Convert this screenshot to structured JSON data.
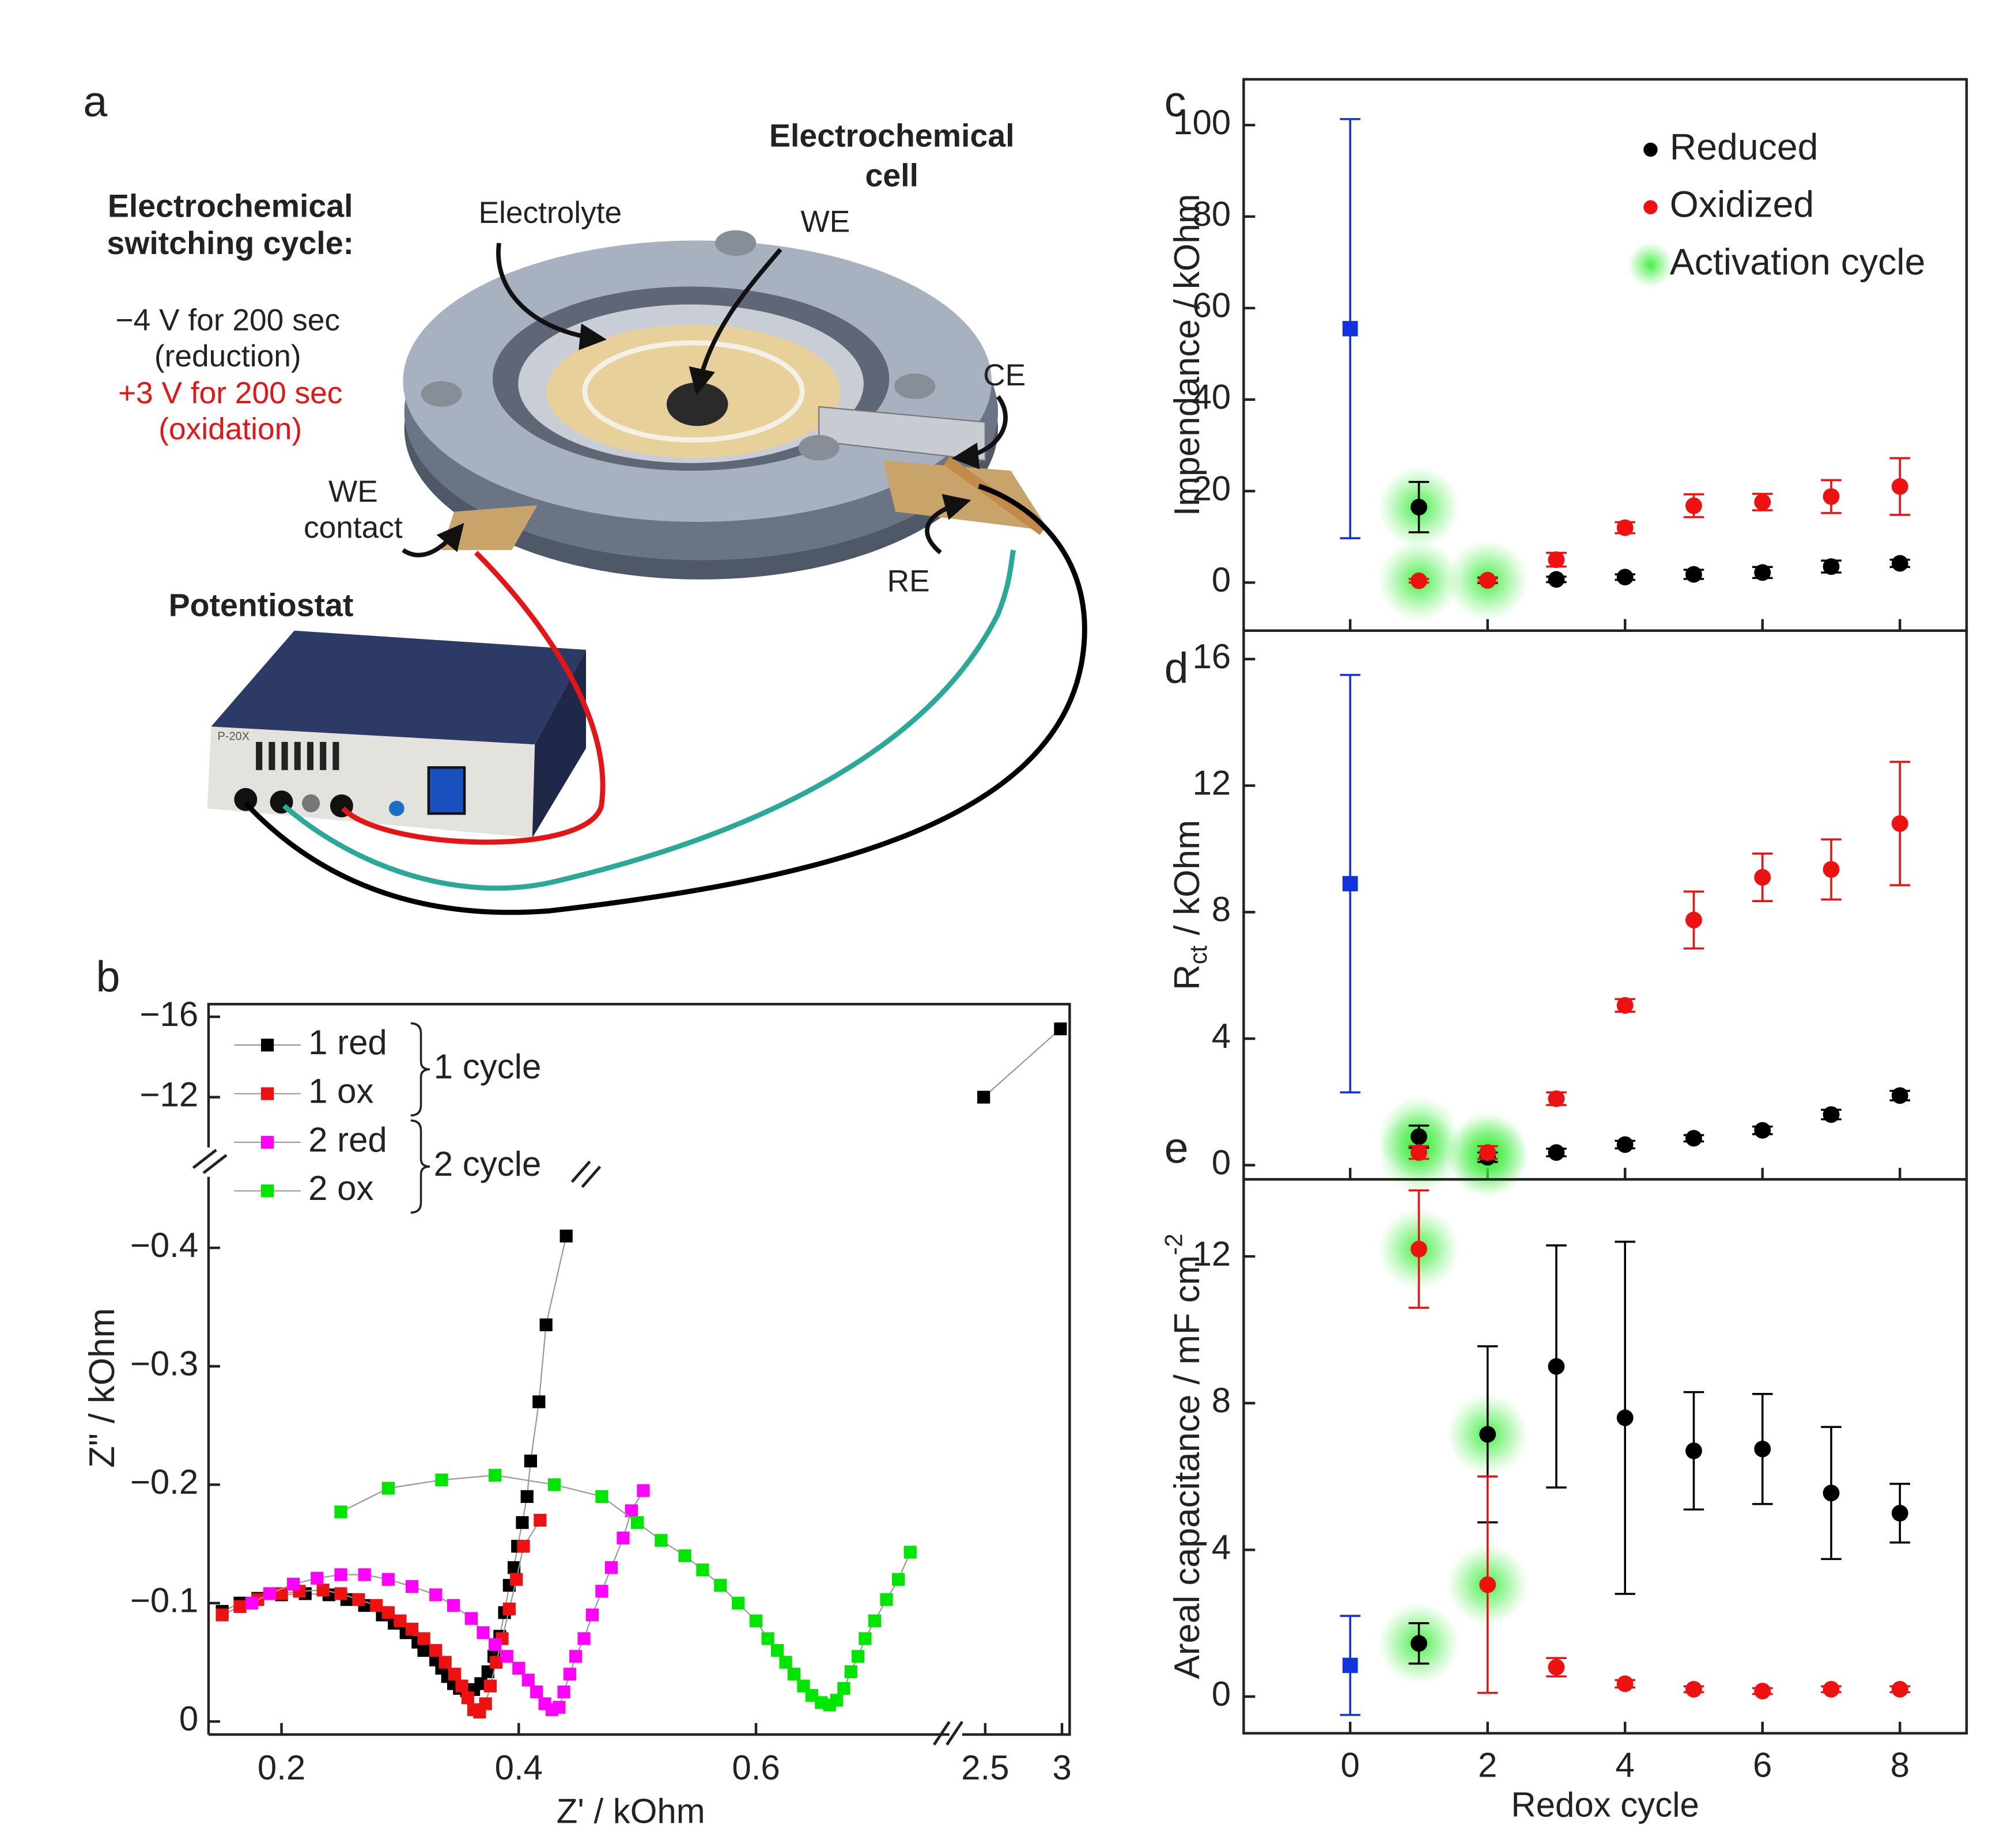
{
  "diagram": {
    "panel": "a",
    "cell_label": [
      "Electrochemical",
      "cell"
    ],
    "cycle_title": [
      "Electrochemical",
      "switching cycle:"
    ],
    "reduction": [
      "−4 V for 200 sec",
      "(reduction)"
    ],
    "oxidation": [
      "+3 V for 200 sec",
      "(oxidation)"
    ],
    "electrolyte": "Electrolyte",
    "we": "WE",
    "ce": "CE",
    "we_contact": [
      "WE",
      "contact"
    ],
    "re": "RE",
    "potentiostat": "Potentiostat",
    "device_model": "P-20X"
  },
  "chart_data": [
    {
      "panel": "b",
      "type": "line",
      "xlabel": "Z' / kOhm",
      "ylabel": "Z\" / kOhm",
      "legend": "upper left",
      "legend_groups": [
        "1 cycle",
        "2 cycle"
      ],
      "xlim_segments": [
        [
          0.1385,
          0.763
        ],
        [
          2.35,
          3.05
        ]
      ],
      "ylim_segments": [
        [
          0.011,
          -0.46
        ],
        [
          -9.5,
          -16.63
        ]
      ],
      "xticks": [
        0.2,
        0.4,
        0.6,
        2.5,
        3
      ],
      "yticks": [
        0,
        {
          "value": -0.1,
          "label": "−0.1"
        },
        {
          "value": -0.2,
          "label": "−0.2"
        },
        {
          "value": -0.3,
          "label": "−0.3"
        },
        {
          "value": -0.4,
          "label": "−0.4"
        },
        {
          "value": -12,
          "label": "−12"
        },
        {
          "value": -16,
          "label": "−16"
        }
      ],
      "series": [
        {
          "name": "1 red",
          "color": "#000000",
          "x": [
            0.15,
            0.165,
            0.18,
            0.2,
            0.22,
            0.24,
            0.255,
            0.27,
            0.285,
            0.295,
            0.305,
            0.315,
            0.32,
            0.33,
            0.335,
            0.34,
            0.345,
            0.35,
            0.356,
            0.362,
            0.368,
            0.374,
            0.379,
            0.384,
            0.388,
            0.392,
            0.396,
            0.399,
            0.403,
            0.407,
            0.41,
            0.417,
            0.423,
            0.44,
            2.49,
            2.99
          ],
          "values": [
            -0.093,
            -0.1,
            -0.104,
            -0.107,
            -0.108,
            -0.107,
            -0.103,
            -0.098,
            -0.09,
            -0.083,
            -0.075,
            -0.067,
            -0.06,
            -0.052,
            -0.045,
            -0.038,
            -0.032,
            -0.028,
            -0.026,
            -0.027,
            -0.032,
            -0.042,
            -0.055,
            -0.072,
            -0.092,
            -0.115,
            -0.13,
            -0.148,
            -0.168,
            -0.19,
            -0.22,
            -0.27,
            -0.335,
            -0.41,
            -12.0,
            -15.4
          ]
        },
        {
          "name": "1 ox",
          "color": "#ee1111",
          "x": [
            0.15,
            0.165,
            0.18,
            0.2,
            0.215,
            0.235,
            0.25,
            0.265,
            0.28,
            0.29,
            0.3,
            0.31,
            0.32,
            0.33,
            0.338,
            0.346,
            0.352,
            0.357,
            0.362,
            0.367,
            0.372,
            0.376,
            0.381,
            0.386,
            0.392,
            0.398,
            0.404,
            0.418
          ],
          "values": [
            -0.09,
            -0.097,
            -0.103,
            -0.108,
            -0.11,
            -0.111,
            -0.108,
            -0.103,
            -0.098,
            -0.092,
            -0.085,
            -0.078,
            -0.07,
            -0.06,
            -0.05,
            -0.04,
            -0.03,
            -0.02,
            -0.01,
            -0.008,
            -0.015,
            -0.03,
            -0.05,
            -0.07,
            -0.095,
            -0.12,
            -0.148,
            -0.17
          ]
        },
        {
          "name": "2 red",
          "color": "#ff00ff",
          "x": [
            0.175,
            0.19,
            0.21,
            0.23,
            0.25,
            0.27,
            0.29,
            0.31,
            0.33,
            0.345,
            0.36,
            0.37,
            0.38,
            0.39,
            0.4,
            0.408,
            0.415,
            0.422,
            0.428,
            0.434,
            0.438,
            0.443,
            0.448,
            0.455,
            0.462,
            0.47,
            0.478,
            0.488,
            0.495,
            0.505
          ],
          "values": [
            -0.1,
            -0.108,
            -0.116,
            -0.121,
            -0.124,
            -0.124,
            -0.12,
            -0.114,
            -0.107,
            -0.098,
            -0.087,
            -0.075,
            -0.065,
            -0.055,
            -0.045,
            -0.035,
            -0.025,
            -0.015,
            -0.01,
            -0.012,
            -0.025,
            -0.04,
            -0.055,
            -0.07,
            -0.09,
            -0.11,
            -0.13,
            -0.155,
            -0.178,
            -0.195
          ]
        },
        {
          "name": "2 ox",
          "color": "#00e600",
          "x": [
            0.25,
            0.29,
            0.335,
            0.38,
            0.43,
            0.47,
            0.5,
            0.52,
            0.54,
            0.555,
            0.57,
            0.585,
            0.6,
            0.61,
            0.618,
            0.625,
            0.632,
            0.64,
            0.647,
            0.655,
            0.662,
            0.668,
            0.674,
            0.68,
            0.686,
            0.692,
            0.7,
            0.71,
            0.72,
            0.73
          ],
          "values": [
            -0.177,
            -0.197,
            -0.204,
            -0.208,
            -0.2,
            -0.19,
            -0.168,
            -0.153,
            -0.14,
            -0.128,
            -0.115,
            -0.1,
            -0.085,
            -0.07,
            -0.06,
            -0.05,
            -0.04,
            -0.03,
            -0.022,
            -0.016,
            -0.014,
            -0.018,
            -0.028,
            -0.042,
            -0.055,
            -0.07,
            -0.085,
            -0.103,
            -0.12,
            -0.143
          ]
        }
      ]
    },
    {
      "panel": "c",
      "type": "scatter",
      "ylabel": "Impendance / kOhm",
      "legend": "upper right",
      "xlim": [
        -1.55,
        8.97
      ],
      "xticks": [
        0,
        2,
        4,
        6,
        8
      ],
      "ylim": [
        -10.5,
        110
      ],
      "yticks": [
        0,
        20,
        40,
        60,
        80,
        100
      ],
      "activation": {
        "name": "Activation cycle",
        "color": "#22dd22",
        "x": [
          1,
          1,
          2
        ],
        "values": [
          16.5,
          0.4,
          0.5
        ]
      },
      "series": [
        {
          "name": "Reduced",
          "color": "#000000",
          "marker": "circle",
          "x": [
            1,
            2,
            3,
            4,
            5,
            6,
            7,
            8
          ],
          "values": [
            16.5,
            0.5,
            0.7,
            1.2,
            1.8,
            2.2,
            3.5,
            4.2
          ],
          "errors": [
            5.5,
            0.6,
            0.6,
            0.6,
            1,
            1.2,
            1.3,
            0.8
          ]
        },
        {
          "name": "Oxidized",
          "color": "#ee1111",
          "marker": "circle",
          "x": [
            1,
            2,
            3,
            4,
            5,
            6,
            7,
            8
          ],
          "values": [
            0.4,
            0.5,
            5,
            12,
            16.8,
            17.6,
            18.8,
            21
          ],
          "errors": [
            0.4,
            0.4,
            1.5,
            1.2,
            2.5,
            1.8,
            3.6,
            6.2
          ]
        },
        {
          "color": "#1133dd",
          "marker": "square",
          "x": [
            0
          ],
          "values": [
            55.5
          ],
          "errors": [
            45.8
          ]
        }
      ]
    },
    {
      "panel": "d",
      "type": "scatter",
      "ylabel": "R",
      "ylabel_sub": "ct",
      "ylabel_unit": "/ kOhm",
      "xlim": [
        -1.55,
        8.97
      ],
      "xticks": [
        0,
        2,
        4,
        6,
        8
      ],
      "ylim": [
        -0.45,
        16.9
      ],
      "yticks": [
        0,
        4,
        8,
        12,
        16
      ],
      "activation": {
        "color": "#22dd22",
        "x": [
          1,
          1,
          2,
          2
        ],
        "values": [
          0.9,
          0.4,
          0.4,
          0.25
        ]
      },
      "series": [
        {
          "color": "#000000",
          "marker": "circle",
          "x": [
            1,
            2,
            3,
            4,
            5,
            6,
            7,
            8
          ],
          "values": [
            0.9,
            0.25,
            0.4,
            0.65,
            0.85,
            1.1,
            1.6,
            2.2
          ],
          "errors": [
            0.35,
            0.15,
            0.12,
            0.12,
            0.1,
            0.12,
            0.15,
            0.15
          ]
        },
        {
          "color": "#ee1111",
          "marker": "circle",
          "x": [
            1,
            2,
            3,
            4,
            5,
            6,
            7,
            8
          ],
          "values": [
            0.4,
            0.4,
            2.1,
            5.05,
            7.75,
            9.1,
            9.35,
            10.8
          ],
          "errors": [
            0.2,
            0.2,
            0.2,
            0.2,
            0.9,
            0.75,
            0.95,
            1.95
          ]
        },
        {
          "color": "#1133dd",
          "marker": "square",
          "x": [
            0
          ],
          "values": [
            8.9
          ],
          "errors": [
            6.6
          ]
        }
      ]
    },
    {
      "panel": "e",
      "type": "scatter",
      "xlabel": "Redox cycle",
      "ylabel": "Areal capacitance / mF cm",
      "ylabel_sup": "-2",
      "xlim": [
        -1.55,
        8.97
      ],
      "xticks": [
        0,
        2,
        4,
        6,
        8
      ],
      "ylim": [
        -1.0,
        14.1
      ],
      "yticks": [
        0,
        4,
        8,
        12
      ],
      "activation": {
        "color": "#22dd22",
        "x": [
          1,
          1,
          2,
          2
        ],
        "values": [
          12.2,
          1.45,
          7.15,
          3.05
        ]
      },
      "series": [
        {
          "color": "#000000",
          "marker": "circle",
          "x": [
            1,
            2,
            3,
            4,
            5,
            6,
            7,
            8
          ],
          "values": [
            1.45,
            7.15,
            9.0,
            7.6,
            6.7,
            6.75,
            5.55,
            5.0
          ],
          "errors": [
            0.55,
            2.4,
            3.3,
            4.8,
            1.6,
            1.5,
            1.8,
            0.8
          ]
        },
        {
          "color": "#ee1111",
          "marker": "circle",
          "x": [
            1,
            2,
            3,
            4,
            5,
            6,
            7,
            8
          ],
          "values": [
            12.2,
            3.05,
            0.8,
            0.35,
            0.2,
            0.15,
            0.2,
            0.2
          ],
          "errors": [
            1.6,
            2.95,
            0.25,
            0.1,
            0.08,
            0.08,
            0.08,
            0.08
          ]
        },
        {
          "color": "#1133dd",
          "marker": "square",
          "x": [
            0
          ],
          "values": [
            0.85
          ],
          "errors": [
            1.35
          ]
        }
      ]
    }
  ]
}
